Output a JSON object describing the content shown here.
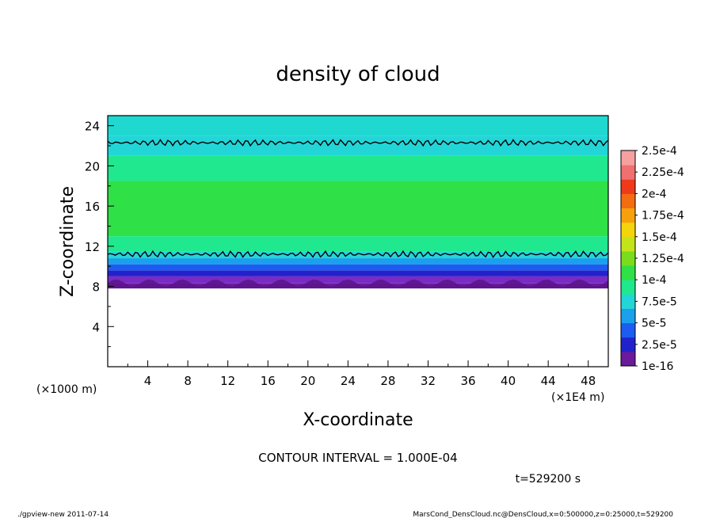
{
  "chart_data": {
    "type": "heatmap",
    "title": "density of cloud",
    "xlabel": "X-coordinate",
    "ylabel": "Z-coordinate",
    "x_unit_left": "(×1000 m)",
    "x_unit_right": "(×1E4 m)",
    "xlim": [
      0,
      50
    ],
    "ylim": [
      0,
      25
    ],
    "x_ticks": [
      "4",
      "8",
      "12",
      "16",
      "20",
      "24",
      "28",
      "32",
      "36",
      "40",
      "44",
      "48"
    ],
    "y_ticks": [
      "4",
      "8",
      "12",
      "16",
      "20",
      "24"
    ],
    "contour_interval": "CONTOUR INTERVAL = 1.000E-04",
    "time_label": "t=529200 s",
    "colorbar": {
      "labels": [
        "1e-16",
        "2.5e-5",
        "5e-5",
        "7.5e-5",
        "1e-4",
        "1.25e-4",
        "1.5e-4",
        "1.75e-4",
        "2e-4",
        "2.25e-4",
        "2.5e-4"
      ],
      "colors": [
        "#6a1a9a",
        "#2222cc",
        "#1c5cf0",
        "#1aa0ec",
        "#22d6d8",
        "#1fe88e",
        "#2fe046",
        "#7adc1c",
        "#c4e41a",
        "#f4d40a",
        "#f6a00c",
        "#f46c10",
        "#ee3a1a",
        "#f07070",
        "#f6a0a0"
      ]
    },
    "field_bands": [
      {
        "z0": 7.8,
        "z1": 8.3,
        "color": "#6a1a9a"
      },
      {
        "z0": 8.3,
        "z1": 9.0,
        "color": "#7a2bc4"
      },
      {
        "z0": 9.0,
        "z1": 9.6,
        "color": "#2222cc"
      },
      {
        "z0": 9.6,
        "z1": 10.2,
        "color": "#1c5cf0"
      },
      {
        "z0": 10.2,
        "z1": 10.8,
        "color": "#1aa0ec"
      },
      {
        "z0": 10.8,
        "z1": 11.5,
        "color": "#22d6d8"
      },
      {
        "z0": 11.5,
        "z1": 13.0,
        "color": "#1fe88e"
      },
      {
        "z0": 13.0,
        "z1": 18.5,
        "color": "#2fe046"
      },
      {
        "z0": 18.5,
        "z1": 21.0,
        "color": "#1fe88e"
      },
      {
        "z0": 21.0,
        "z1": 23.0,
        "color": "#22d6d8"
      },
      {
        "z0": 23.0,
        "z1": 25.0,
        "color": "#1fd8d0"
      }
    ],
    "contours_z": [
      11.2,
      22.3
    ]
  },
  "footer": {
    "left": "./gpview-new  2011-07-14",
    "right": "MarsCond_DensCloud.nc@DensCloud,x=0:500000,z=0:25000,t=529200"
  }
}
